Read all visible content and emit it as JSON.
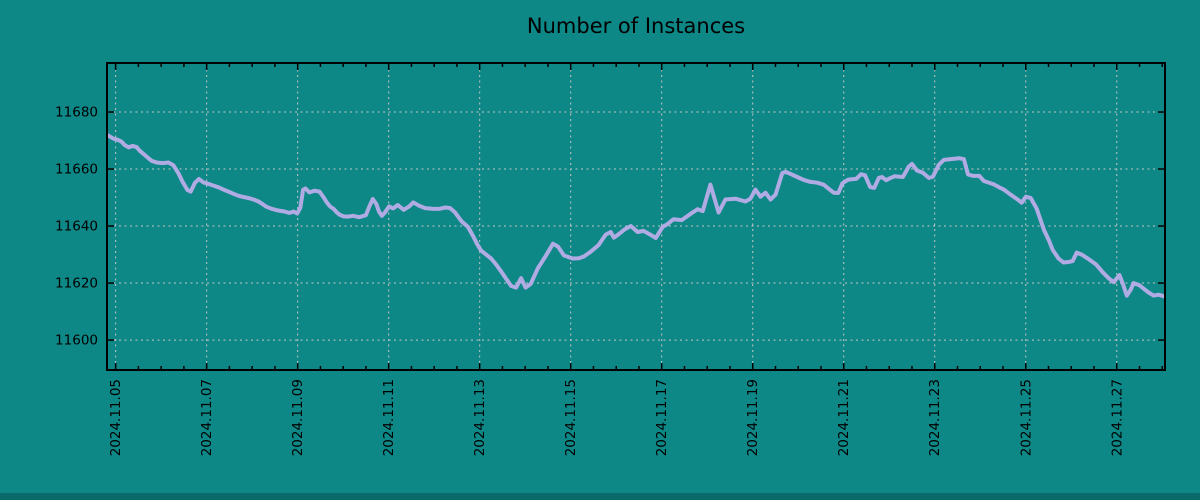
{
  "chart_data": {
    "type": "line",
    "title": "Number of Instances",
    "xlabel": "",
    "ylabel": "",
    "grid": true,
    "legend": "none",
    "colors": {
      "background": "#0e8787",
      "bottom_strip": "#0a6a6a",
      "line": "#b1abe4",
      "grid_line": "#c6c6c6",
      "border": "#000000",
      "text": "#000000"
    },
    "x_axis": {
      "tick_labels": [
        "2024.11.05",
        "2024.11.07",
        "2024.11.09",
        "2024.11.11",
        "2024.11.13",
        "2024.11.15",
        "2024.11.17",
        "2024.11.19",
        "2024.11.21",
        "2024.11.23",
        "2024.11.25",
        "2024.11.27"
      ],
      "tick_days": [
        0,
        2,
        4,
        6,
        8,
        10,
        12,
        14,
        16,
        18,
        20,
        22
      ],
      "minor_step_days": 0.5,
      "range_days": [
        -0.19,
        23.06
      ]
    },
    "y_axis": {
      "ticks": [
        11600,
        11620,
        11640,
        11660,
        11680
      ],
      "range": [
        11589.5,
        11697.2
      ]
    },
    "series": [
      {
        "name": "instances",
        "points": [
          [
            -0.19,
            11672.0
          ],
          [
            -0.04,
            11670.6
          ],
          [
            0.04,
            11670.3
          ],
          [
            0.13,
            11669.6
          ],
          [
            0.2,
            11668.4
          ],
          [
            0.29,
            11667.6
          ],
          [
            0.37,
            11668.1
          ],
          [
            0.46,
            11667.7
          ],
          [
            0.53,
            11666.4
          ],
          [
            0.61,
            11665.3
          ],
          [
            0.7,
            11664.1
          ],
          [
            0.79,
            11662.9
          ],
          [
            0.9,
            11662.3
          ],
          [
            1.03,
            11662.1
          ],
          [
            1.16,
            11662.3
          ],
          [
            1.27,
            11661.3
          ],
          [
            1.38,
            11658.5
          ],
          [
            1.47,
            11655.6
          ],
          [
            1.58,
            11652.6
          ],
          [
            1.65,
            11652.1
          ],
          [
            1.74,
            11655.1
          ],
          [
            1.83,
            11656.5
          ],
          [
            1.93,
            11655.3
          ],
          [
            2.04,
            11654.8
          ],
          [
            2.15,
            11654.2
          ],
          [
            2.26,
            11653.6
          ],
          [
            2.37,
            11652.8
          ],
          [
            2.48,
            11652.1
          ],
          [
            2.59,
            11651.3
          ],
          [
            2.7,
            11650.6
          ],
          [
            2.81,
            11650.2
          ],
          [
            2.92,
            11649.8
          ],
          [
            3.03,
            11649.3
          ],
          [
            3.14,
            11648.6
          ],
          [
            3.23,
            11647.7
          ],
          [
            3.31,
            11646.8
          ],
          [
            3.42,
            11646.1
          ],
          [
            3.53,
            11645.6
          ],
          [
            3.62,
            11645.3
          ],
          [
            3.71,
            11645.1
          ],
          [
            3.82,
            11644.6
          ],
          [
            3.91,
            11645.1
          ],
          [
            3.99,
            11644.4
          ],
          [
            4.06,
            11646.5
          ],
          [
            4.12,
            11652.7
          ],
          [
            4.17,
            11653.2
          ],
          [
            4.26,
            11651.8
          ],
          [
            4.37,
            11652.4
          ],
          [
            4.48,
            11652.1
          ],
          [
            4.57,
            11650.1
          ],
          [
            4.64,
            11648.3
          ],
          [
            4.71,
            11646.9
          ],
          [
            4.79,
            11646.0
          ],
          [
            4.86,
            11644.8
          ],
          [
            4.93,
            11643.9
          ],
          [
            5.01,
            11643.4
          ],
          [
            5.1,
            11643.3
          ],
          [
            5.22,
            11643.6
          ],
          [
            5.35,
            11643.1
          ],
          [
            5.5,
            11643.8
          ],
          [
            5.58,
            11647.1
          ],
          [
            5.65,
            11649.5
          ],
          [
            5.73,
            11647.7
          ],
          [
            5.79,
            11645.0
          ],
          [
            5.85,
            11643.6
          ],
          [
            5.92,
            11644.8
          ],
          [
            6.01,
            11646.9
          ],
          [
            6.1,
            11646.2
          ],
          [
            6.2,
            11647.4
          ],
          [
            6.33,
            11645.7
          ],
          [
            6.45,
            11646.9
          ],
          [
            6.54,
            11648.3
          ],
          [
            6.67,
            11647.1
          ],
          [
            6.8,
            11646.3
          ],
          [
            6.95,
            11646.1
          ],
          [
            7.1,
            11646.0
          ],
          [
            7.25,
            11646.5
          ],
          [
            7.35,
            11646.3
          ],
          [
            7.45,
            11644.9
          ],
          [
            7.6,
            11641.7
          ],
          [
            7.74,
            11639.7
          ],
          [
            7.85,
            11636.6
          ],
          [
            7.95,
            11633.5
          ],
          [
            8.03,
            11631.4
          ],
          [
            8.14,
            11630.0
          ],
          [
            8.25,
            11628.6
          ],
          [
            8.36,
            11626.5
          ],
          [
            8.47,
            11624.1
          ],
          [
            8.58,
            11621.5
          ],
          [
            8.69,
            11619.0
          ],
          [
            8.8,
            11618.4
          ],
          [
            8.91,
            11621.7
          ],
          [
            9.01,
            11618.4
          ],
          [
            9.12,
            11619.7
          ],
          [
            9.28,
            11625.2
          ],
          [
            9.45,
            11629.5
          ],
          [
            9.61,
            11633.8
          ],
          [
            9.72,
            11632.8
          ],
          [
            9.85,
            11629.7
          ],
          [
            10.04,
            11628.6
          ],
          [
            10.18,
            11628.7
          ],
          [
            10.29,
            11629.3
          ],
          [
            10.44,
            11631.0
          ],
          [
            10.61,
            11633.3
          ],
          [
            10.77,
            11637.0
          ],
          [
            10.88,
            11637.9
          ],
          [
            10.95,
            11635.9
          ],
          [
            11.06,
            11637.2
          ],
          [
            11.19,
            11638.9
          ],
          [
            11.32,
            11640.0
          ],
          [
            11.47,
            11637.9
          ],
          [
            11.6,
            11638.3
          ],
          [
            11.75,
            11637.0
          ],
          [
            11.87,
            11635.8
          ],
          [
            12.02,
            11639.7
          ],
          [
            12.13,
            11640.7
          ],
          [
            12.26,
            11642.4
          ],
          [
            12.44,
            11642.1
          ],
          [
            12.68,
            11644.8
          ],
          [
            12.79,
            11645.9
          ],
          [
            12.9,
            11645.2
          ],
          [
            13.07,
            11654.5
          ],
          [
            13.25,
            11644.8
          ],
          [
            13.4,
            11649.3
          ],
          [
            13.62,
            11649.6
          ],
          [
            13.84,
            11648.6
          ],
          [
            13.95,
            11649.6
          ],
          [
            14.06,
            11652.8
          ],
          [
            14.17,
            11650.3
          ],
          [
            14.28,
            11651.7
          ],
          [
            14.39,
            11649.3
          ],
          [
            14.5,
            11651.0
          ],
          [
            14.65,
            11658.6
          ],
          [
            14.72,
            11659.0
          ],
          [
            14.83,
            11658.3
          ],
          [
            14.98,
            11657.2
          ],
          [
            15.12,
            11656.2
          ],
          [
            15.27,
            11655.5
          ],
          [
            15.42,
            11655.2
          ],
          [
            15.56,
            11654.5
          ],
          [
            15.66,
            11653.2
          ],
          [
            15.78,
            11651.7
          ],
          [
            15.88,
            11651.6
          ],
          [
            15.97,
            11655.0
          ],
          [
            16.1,
            11656.3
          ],
          [
            16.28,
            11656.6
          ],
          [
            16.38,
            11658.2
          ],
          [
            16.47,
            11657.8
          ],
          [
            16.58,
            11653.7
          ],
          [
            16.67,
            11653.4
          ],
          [
            16.77,
            11656.9
          ],
          [
            16.84,
            11657.2
          ],
          [
            16.93,
            11656.1
          ],
          [
            17.02,
            11656.8
          ],
          [
            17.12,
            11657.5
          ],
          [
            17.3,
            11657.2
          ],
          [
            17.43,
            11660.9
          ],
          [
            17.5,
            11661.8
          ],
          [
            17.61,
            11659.5
          ],
          [
            17.74,
            11658.7
          ],
          [
            17.87,
            11656.9
          ],
          [
            17.96,
            11657.3
          ],
          [
            18.09,
            11661.5
          ],
          [
            18.2,
            11663.2
          ],
          [
            18.35,
            11663.5
          ],
          [
            18.53,
            11663.8
          ],
          [
            18.64,
            11663.5
          ],
          [
            18.73,
            11658.1
          ],
          [
            18.85,
            11657.6
          ],
          [
            18.98,
            11657.6
          ],
          [
            19.08,
            11655.8
          ],
          [
            19.3,
            11654.6
          ],
          [
            19.45,
            11653.3
          ],
          [
            19.52,
            11652.8
          ],
          [
            19.67,
            11651.0
          ],
          [
            19.82,
            11649.3
          ],
          [
            19.91,
            11648.2
          ],
          [
            20.0,
            11650.3
          ],
          [
            20.11,
            11649.8
          ],
          [
            20.24,
            11646.1
          ],
          [
            20.4,
            11638.6
          ],
          [
            20.51,
            11634.9
          ],
          [
            20.59,
            11631.7
          ],
          [
            20.72,
            11628.6
          ],
          [
            20.83,
            11627.2
          ],
          [
            20.94,
            11627.4
          ],
          [
            21.03,
            11627.7
          ],
          [
            21.12,
            11630.7
          ],
          [
            21.23,
            11630.0
          ],
          [
            21.38,
            11628.4
          ],
          [
            21.54,
            11626.6
          ],
          [
            21.69,
            11623.8
          ],
          [
            21.82,
            11621.7
          ],
          [
            21.93,
            11620.3
          ],
          [
            22.06,
            11622.8
          ],
          [
            22.14,
            11619.5
          ],
          [
            22.22,
            11615.6
          ],
          [
            22.31,
            11617.8
          ],
          [
            22.37,
            11620.0
          ],
          [
            22.5,
            11619.2
          ],
          [
            22.61,
            11617.8
          ],
          [
            22.7,
            11616.7
          ],
          [
            22.81,
            11615.6
          ],
          [
            22.92,
            11615.9
          ],
          [
            23.05,
            11615.3
          ]
        ]
      }
    ]
  }
}
